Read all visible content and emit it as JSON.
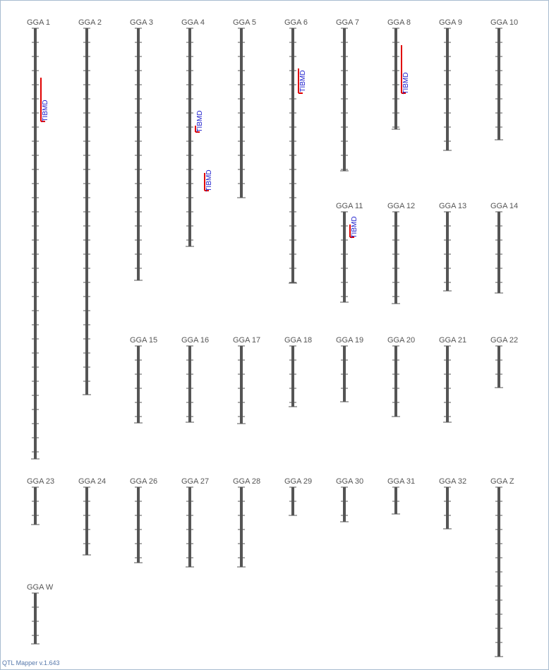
{
  "chromosomes": [
    {
      "name": "GGA 1",
      "qtls": [
        "TIBMD"
      ]
    },
    {
      "name": "GGA 2",
      "qtls": []
    },
    {
      "name": "GGA 3",
      "qtls": []
    },
    {
      "name": "GGA 4",
      "qtls": [
        "TIBMD",
        "TIBMD"
      ]
    },
    {
      "name": "GGA 5",
      "qtls": []
    },
    {
      "name": "GGA 6",
      "qtls": [
        "TIBMD"
      ]
    },
    {
      "name": "GGA 7",
      "qtls": []
    },
    {
      "name": "GGA 8",
      "qtls": [
        "TIBMD"
      ]
    },
    {
      "name": "GGA 9",
      "qtls": []
    },
    {
      "name": "GGA 10",
      "qtls": []
    },
    {
      "name": "GGA 11",
      "qtls": [
        "TIBMD"
      ]
    },
    {
      "name": "GGA 12",
      "qtls": []
    },
    {
      "name": "GGA 13",
      "qtls": []
    },
    {
      "name": "GGA 14",
      "qtls": []
    },
    {
      "name": "GGA 15",
      "qtls": []
    },
    {
      "name": "GGA 16",
      "qtls": []
    },
    {
      "name": "GGA 17",
      "qtls": []
    },
    {
      "name": "GGA 18",
      "qtls": []
    },
    {
      "name": "GGA 19",
      "qtls": []
    },
    {
      "name": "GGA 20",
      "qtls": []
    },
    {
      "name": "GGA 21",
      "qtls": []
    },
    {
      "name": "GGA 22",
      "qtls": []
    },
    {
      "name": "GGA 23",
      "qtls": []
    },
    {
      "name": "GGA 24",
      "qtls": []
    },
    {
      "name": "GGA 26",
      "qtls": []
    },
    {
      "name": "GGA 27",
      "qtls": []
    },
    {
      "name": "GGA 28",
      "qtls": []
    },
    {
      "name": "GGA 29",
      "qtls": []
    },
    {
      "name": "GGA 30",
      "qtls": []
    },
    {
      "name": "GGA 31",
      "qtls": []
    },
    {
      "name": "GGA 32",
      "qtls": []
    },
    {
      "name": "GGA Z",
      "qtls": []
    },
    {
      "name": "GGA W",
      "qtls": []
    }
  ],
  "footer": "QTL Mapper v.1.643"
}
